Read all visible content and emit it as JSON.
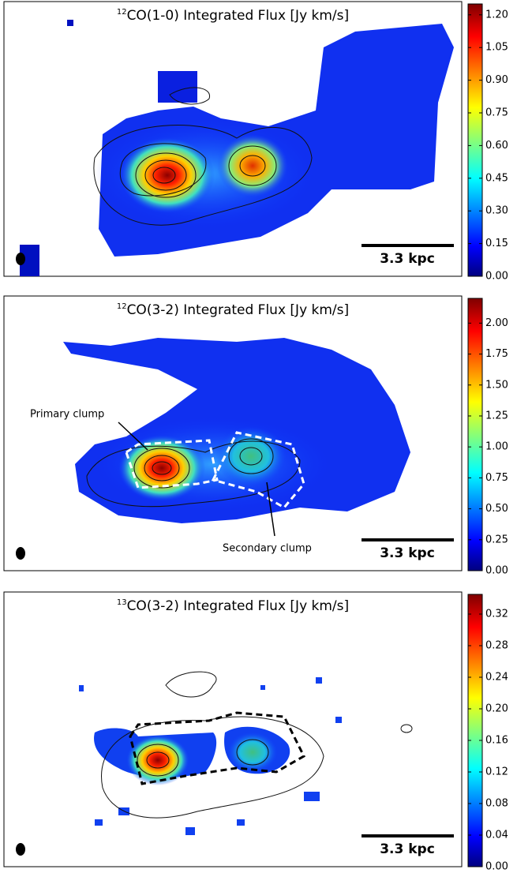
{
  "chart_data": [
    {
      "type": "map",
      "title_superscript": "12",
      "title": "CO(1-0) Integrated Flux [Jy km/s]",
      "scale_bar": "3.3 kpc",
      "clim": [
        0,
        1.25
      ],
      "cticks": [
        {
          "value": 0,
          "label": "0.00"
        },
        {
          "value": 0.15,
          "label": "0.15"
        },
        {
          "value": 0.3,
          "label": "0.30"
        },
        {
          "value": 0.45,
          "label": "0.45"
        },
        {
          "value": 0.6,
          "label": "0.60"
        },
        {
          "value": 0.75,
          "label": "0.75"
        },
        {
          "value": 0.9,
          "label": "0.90"
        },
        {
          "value": 1.05,
          "label": "1.05"
        },
        {
          "value": 1.2,
          "label": "1.20"
        }
      ]
    },
    {
      "type": "map",
      "title_superscript": "12",
      "title": "CO(3-2) Integrated Flux [Jy km/s]",
      "scale_bar": "3.3 kpc",
      "clim": [
        0,
        2.2
      ],
      "cticks": [
        {
          "value": 0,
          "label": "0.00"
        },
        {
          "value": 0.25,
          "label": "0.25"
        },
        {
          "value": 0.5,
          "label": "0.50"
        },
        {
          "value": 0.75,
          "label": "0.75"
        },
        {
          "value": 1,
          "label": "1.00"
        },
        {
          "value": 1.25,
          "label": "1.25"
        },
        {
          "value": 1.5,
          "label": "1.50"
        },
        {
          "value": 1.75,
          "label": "1.75"
        },
        {
          "value": 2,
          "label": "2.00"
        }
      ],
      "annotations": [
        "Primary clump",
        "Secondary clump"
      ]
    },
    {
      "type": "map",
      "title_superscript": "13",
      "title": "CO(3-2) Integrated Flux [Jy km/s]",
      "scale_bar": "3.3 kpc",
      "clim": [
        0,
        0.345
      ],
      "cticks": [
        {
          "value": 0,
          "label": "0.00"
        },
        {
          "value": 0.04,
          "label": "0.04"
        },
        {
          "value": 0.08,
          "label": "0.08"
        },
        {
          "value": 0.12,
          "label": "0.12"
        },
        {
          "value": 0.16,
          "label": "0.16"
        },
        {
          "value": 0.2,
          "label": "0.20"
        },
        {
          "value": 0.24,
          "label": "0.24"
        },
        {
          "value": 0.28,
          "label": "0.28"
        },
        {
          "value": 0.32,
          "label": "0.32"
        }
      ]
    }
  ]
}
